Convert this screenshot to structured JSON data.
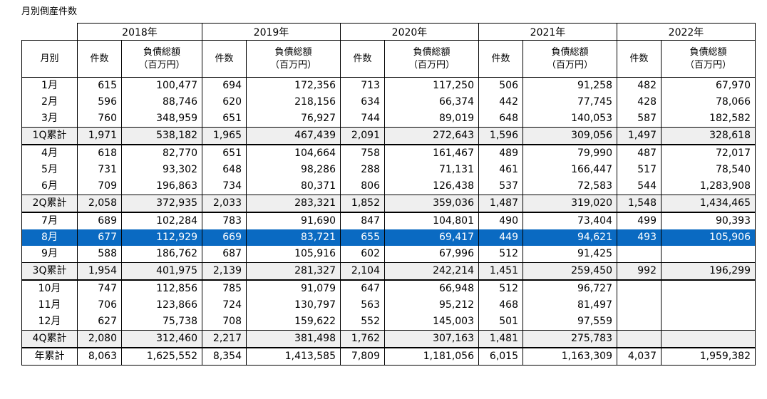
{
  "title": "月別倒産件数",
  "years": [
    "2018年",
    "2019年",
    "2020年",
    "2021年",
    "2022年"
  ],
  "header": {
    "month_label": "月別",
    "count_label": "件数",
    "debt_label": "負債総額",
    "debt_unit": "（百万円）"
  },
  "rows": [
    {
      "label": "1月",
      "type": "month",
      "values": [
        "615",
        "100,477",
        "694",
        "172,356",
        "713",
        "117,250",
        "506",
        "91,258",
        "482",
        "67,970"
      ]
    },
    {
      "label": "2月",
      "type": "month",
      "values": [
        "596",
        "88,746",
        "620",
        "218,156",
        "634",
        "66,374",
        "442",
        "77,745",
        "428",
        "78,066"
      ]
    },
    {
      "label": "3月",
      "type": "month",
      "values": [
        "760",
        "348,959",
        "651",
        "76,927",
        "744",
        "89,019",
        "648",
        "140,053",
        "587",
        "182,582"
      ]
    },
    {
      "label": "1Q累計",
      "type": "sum",
      "values": [
        "1,971",
        "538,182",
        "1,965",
        "467,439",
        "2,091",
        "272,643",
        "1,596",
        "309,056",
        "1,497",
        "328,618"
      ]
    },
    {
      "label": "4月",
      "type": "month",
      "values": [
        "618",
        "82,770",
        "651",
        "104,664",
        "758",
        "161,467",
        "489",
        "79,990",
        "487",
        "72,017"
      ]
    },
    {
      "label": "5月",
      "type": "month",
      "values": [
        "731",
        "93,302",
        "648",
        "98,286",
        "288",
        "71,131",
        "461",
        "166,447",
        "517",
        "78,540"
      ]
    },
    {
      "label": "6月",
      "type": "month",
      "values": [
        "709",
        "196,863",
        "734",
        "80,371",
        "806",
        "126,438",
        "537",
        "72,583",
        "544",
        "1,283,908"
      ]
    },
    {
      "label": "2Q累計",
      "type": "sum",
      "values": [
        "2,058",
        "372,935",
        "2,033",
        "283,321",
        "1,852",
        "359,036",
        "1,487",
        "319,020",
        "1,548",
        "1,434,465"
      ]
    },
    {
      "label": "7月",
      "type": "month",
      "values": [
        "689",
        "102,284",
        "783",
        "91,690",
        "847",
        "104,801",
        "490",
        "73,404",
        "499",
        "90,393"
      ]
    },
    {
      "label": "8月",
      "type": "highlight",
      "values": [
        "677",
        "112,929",
        "669",
        "83,721",
        "655",
        "69,417",
        "449",
        "94,621",
        "493",
        "105,906"
      ]
    },
    {
      "label": "9月",
      "type": "month",
      "values": [
        "588",
        "186,762",
        "687",
        "105,916",
        "602",
        "67,996",
        "512",
        "91,425",
        "",
        ""
      ]
    },
    {
      "label": "3Q累計",
      "type": "sum",
      "values": [
        "1,954",
        "401,975",
        "2,139",
        "281,327",
        "2,104",
        "242,214",
        "1,451",
        "259,450",
        "992",
        "196,299"
      ]
    },
    {
      "label": "10月",
      "type": "month",
      "values": [
        "747",
        "112,856",
        "785",
        "91,079",
        "647",
        "66,948",
        "512",
        "96,727",
        "",
        ""
      ]
    },
    {
      "label": "11月",
      "type": "month",
      "values": [
        "706",
        "123,866",
        "724",
        "130,797",
        "563",
        "95,212",
        "468",
        "81,497",
        "",
        ""
      ]
    },
    {
      "label": "12月",
      "type": "month",
      "values": [
        "627",
        "75,738",
        "708",
        "159,622",
        "552",
        "145,003",
        "501",
        "97,559",
        "",
        ""
      ]
    },
    {
      "label": "4Q累計",
      "type": "sum",
      "values": [
        "2,080",
        "312,460",
        "2,217",
        "381,498",
        "1,762",
        "307,163",
        "1,481",
        "275,783",
        "",
        ""
      ]
    },
    {
      "label": "年累計",
      "type": "total",
      "values": [
        "8,063",
        "1,625,552",
        "8,354",
        "1,413,585",
        "7,809",
        "1,181,056",
        "6,015",
        "1,163,309",
        "4,037",
        "1,959,382"
      ]
    }
  ]
}
